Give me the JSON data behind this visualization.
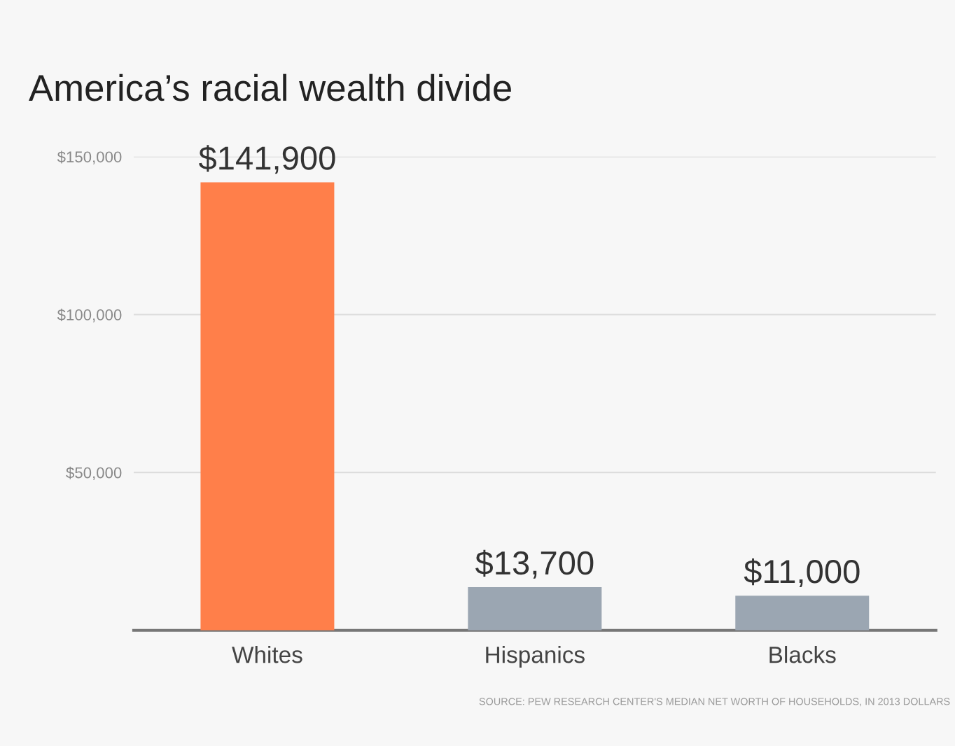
{
  "chart_data": {
    "type": "bar",
    "title": "America’s racial wealth divide",
    "categories": [
      "Whites",
      "Hispanics",
      "Blacks"
    ],
    "values": [
      141900,
      13700,
      11000
    ],
    "value_labels": [
      "$141,900",
      "$13,700",
      "$11,000"
    ],
    "colors": [
      "#ff7f4a",
      "#9ba6b2",
      "#9ba6b2"
    ],
    "ylim": [
      0,
      150000
    ],
    "yticks": [
      {
        "value": 50000,
        "label": "$50,000"
      },
      {
        "value": 100000,
        "label": "$100,000"
      },
      {
        "value": 150000,
        "label": "$150,000"
      }
    ],
    "grid": "y",
    "annotations": [
      "SOURCE: PEW RESEARCH CENTER'S MEDIAN NET WORTH OF HOUSEHOLDS, IN 2013 DOLLARS"
    ]
  }
}
